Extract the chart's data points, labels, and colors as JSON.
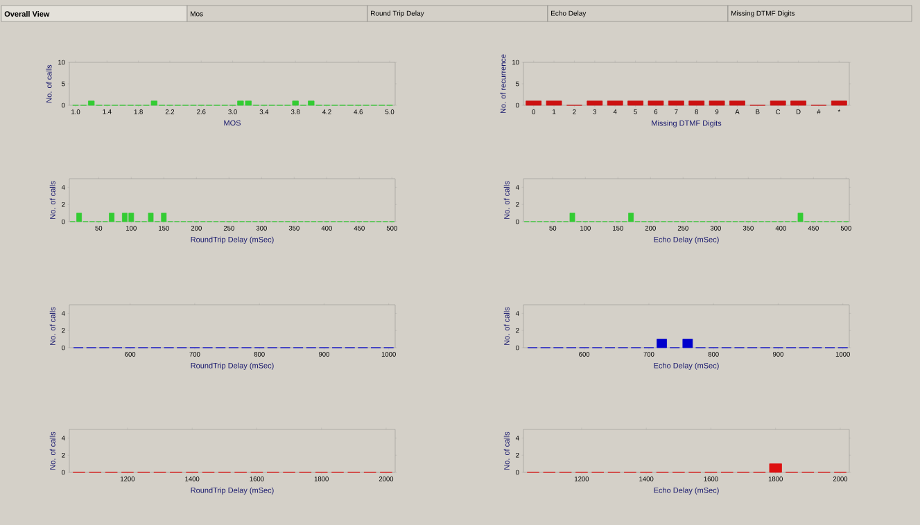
{
  "chart_data": [
    {
      "type": "other",
      "annotations": [
        "Overall View",
        "Mos",
        "Round Trip Delay",
        "Echo Delay",
        "Missing DTMF Digits"
      ]
    },
    {
      "type": "bar",
      "xlabel": "MOS",
      "ylabel": "No. of calls",
      "color": "#33cc33",
      "x": [
        1.0,
        1.1,
        1.2,
        1.3,
        1.4,
        1.5,
        1.6,
        1.7,
        1.8,
        1.9,
        2.0,
        2.1,
        2.2,
        2.3,
        2.4,
        2.5,
        2.6,
        2.7,
        2.8,
        2.9,
        3.0,
        3.1,
        3.2,
        3.3,
        3.4,
        3.5,
        3.6,
        3.7,
        3.8,
        3.9,
        4.0,
        4.1,
        4.2,
        4.3,
        4.4,
        4.5,
        4.6,
        4.7,
        4.8,
        4.9,
        5.0
      ],
      "values": [
        0,
        0,
        1,
        0,
        0,
        0,
        0,
        0,
        0,
        0,
        1,
        0,
        0,
        0,
        0,
        0,
        0,
        0,
        0,
        0,
        0,
        1,
        1,
        0,
        0,
        0,
        0,
        0,
        1,
        0,
        1,
        0,
        0,
        0,
        0,
        0,
        0,
        0,
        0,
        0,
        0
      ],
      "xlim": [
        0.92,
        5.07
      ],
      "xticks": [
        {
          "value": 1.0,
          "label": "1.0"
        },
        1.4,
        1.8,
        2.2,
        2.6,
        {
          "value": 3.0,
          "label": "3.0"
        },
        3.4,
        3.8,
        4.2,
        4.6,
        {
          "value": 5.0,
          "label": "5.0"
        }
      ],
      "ylim": [
        0,
        10
      ],
      "yticks": [
        0,
        5,
        10
      ]
    },
    {
      "type": "bar",
      "xlabel": "Missing DTMF Digits",
      "ylabel": "No. of recurrence",
      "color": "#cc1111",
      "categories": [
        "0",
        "1",
        "2",
        "3",
        "4",
        "5",
        "6",
        "7",
        "8",
        "9",
        "A",
        "B",
        "C",
        "D",
        "#",
        "*"
      ],
      "values": [
        1,
        1,
        0,
        1,
        1,
        1,
        1,
        1,
        1,
        1,
        1,
        0,
        1,
        1,
        0,
        1
      ],
      "ylim": [
        0,
        10
      ],
      "yticks": [
        0,
        5,
        10
      ]
    },
    {
      "type": "bar",
      "xlabel": "RoundTrip Delay (mSec)",
      "ylabel": "No. of calls",
      "color": "#33cc33",
      "x": [
        10,
        20,
        30,
        40,
        50,
        60,
        70,
        80,
        90,
        100,
        110,
        120,
        130,
        140,
        150,
        160,
        170,
        180,
        190,
        200,
        210,
        220,
        230,
        240,
        250,
        260,
        270,
        280,
        290,
        300,
        310,
        320,
        330,
        340,
        350,
        360,
        370,
        380,
        390,
        400,
        410,
        420,
        430,
        440,
        450,
        460,
        470,
        480,
        490,
        500
      ],
      "values": [
        0,
        1,
        0,
        0,
        0,
        0,
        1,
        0,
        1,
        1,
        0,
        0,
        1,
        0,
        1,
        0,
        0,
        0,
        0,
        0,
        0,
        0,
        0,
        0,
        0,
        0,
        0,
        0,
        0,
        0,
        0,
        0,
        0,
        0,
        0,
        0,
        0,
        0,
        0,
        0,
        0,
        0,
        0,
        0,
        0,
        0,
        0,
        0,
        0,
        0
      ],
      "xlim": [
        5,
        505
      ],
      "xticks": [
        50,
        100,
        150,
        200,
        250,
        300,
        350,
        400,
        450,
        500
      ],
      "ylim": [
        0,
        5
      ],
      "yticks": [
        0,
        2,
        4
      ]
    },
    {
      "type": "bar",
      "xlabel": "Echo Delay (mSec)",
      "ylabel": "No. of calls",
      "color": "#33cc33",
      "x": [
        10,
        20,
        30,
        40,
        50,
        60,
        70,
        80,
        90,
        100,
        110,
        120,
        130,
        140,
        150,
        160,
        170,
        180,
        190,
        200,
        210,
        220,
        230,
        240,
        250,
        260,
        270,
        280,
        290,
        300,
        310,
        320,
        330,
        340,
        350,
        360,
        370,
        380,
        390,
        400,
        410,
        420,
        430,
        440,
        450,
        460,
        470,
        480,
        490,
        500
      ],
      "values": [
        0,
        0,
        0,
        0,
        0,
        0,
        0,
        1,
        0,
        0,
        0,
        0,
        0,
        0,
        0,
        0,
        1,
        0,
        0,
        0,
        0,
        0,
        0,
        0,
        0,
        0,
        0,
        0,
        0,
        0,
        0,
        0,
        0,
        0,
        0,
        0,
        0,
        0,
        0,
        0,
        0,
        0,
        1,
        0,
        0,
        0,
        0,
        0,
        0,
        0
      ],
      "xlim": [
        5,
        505
      ],
      "xticks": [
        50,
        100,
        150,
        200,
        250,
        300,
        350,
        400,
        450,
        500
      ],
      "ylim": [
        0,
        5
      ],
      "yticks": [
        0,
        2,
        4
      ]
    },
    {
      "type": "bar",
      "xlabel": "RoundTrip Delay (mSec)",
      "ylabel": "No. of calls",
      "color": "#0000cc",
      "x": [
        520,
        540,
        560,
        580,
        600,
        620,
        640,
        660,
        680,
        700,
        720,
        740,
        760,
        780,
        800,
        820,
        840,
        860,
        880,
        900,
        920,
        940,
        960,
        980,
        1000
      ],
      "values": [
        0,
        0,
        0,
        0,
        0,
        0,
        0,
        0,
        0,
        0,
        0,
        0,
        0,
        0,
        0,
        0,
        0,
        0,
        0,
        0,
        0,
        0,
        0,
        0,
        0
      ],
      "xlim": [
        506,
        1010
      ],
      "xticks": [
        600,
        700,
        800,
        900,
        1000
      ],
      "ylim": [
        0,
        5
      ],
      "yticks": [
        0,
        2,
        4
      ]
    },
    {
      "type": "bar",
      "xlabel": "Echo Delay (mSec)",
      "ylabel": "No. of calls",
      "color": "#0000cc",
      "x": [
        520,
        540,
        560,
        580,
        600,
        620,
        640,
        660,
        680,
        700,
        720,
        740,
        760,
        780,
        800,
        820,
        840,
        860,
        880,
        900,
        920,
        940,
        960,
        980,
        1000
      ],
      "values": [
        0,
        0,
        0,
        0,
        0,
        0,
        0,
        0,
        0,
        0,
        1,
        0,
        1,
        0,
        0,
        0,
        0,
        0,
        0,
        0,
        0,
        0,
        0,
        0,
        0
      ],
      "xlim": [
        506,
        1010
      ],
      "xticks": [
        600,
        700,
        800,
        900,
        1000
      ],
      "ylim": [
        0,
        5
      ],
      "yticks": [
        0,
        2,
        4
      ]
    },
    {
      "type": "bar",
      "xlabel": "RoundTrip Delay (mSec)",
      "ylabel": "No. of calls",
      "color": "#dd1111",
      "x": [
        1050,
        1100,
        1150,
        1200,
        1250,
        1300,
        1350,
        1400,
        1450,
        1500,
        1550,
        1600,
        1650,
        1700,
        1750,
        1800,
        1850,
        1900,
        1950,
        2000
      ],
      "values": [
        0,
        0,
        0,
        0,
        0,
        0,
        0,
        0,
        0,
        0,
        0,
        0,
        0,
        0,
        0,
        0,
        0,
        0,
        0,
        0
      ],
      "xlim": [
        1020,
        2028
      ],
      "xticks": [
        1200,
        1400,
        1600,
        1800,
        2000
      ],
      "ylim": [
        0,
        5
      ],
      "yticks": [
        0,
        2,
        4
      ]
    },
    {
      "type": "bar",
      "xlabel": "Echo Delay (mSec)",
      "ylabel": "No. of calls",
      "color": "#dd1111",
      "x": [
        1050,
        1100,
        1150,
        1200,
        1250,
        1300,
        1350,
        1400,
        1450,
        1500,
        1550,
        1600,
        1650,
        1700,
        1750,
        1800,
        1850,
        1900,
        1950,
        2000
      ],
      "values": [
        0,
        0,
        0,
        0,
        0,
        0,
        0,
        0,
        0,
        0,
        0,
        0,
        0,
        0,
        0,
        1,
        0,
        0,
        0,
        0
      ],
      "xlim": [
        1020,
        2028
      ],
      "xticks": [
        1200,
        1400,
        1600,
        1800,
        2000
      ],
      "ylim": [
        0,
        5
      ],
      "yticks": [
        0,
        2,
        4
      ]
    }
  ]
}
